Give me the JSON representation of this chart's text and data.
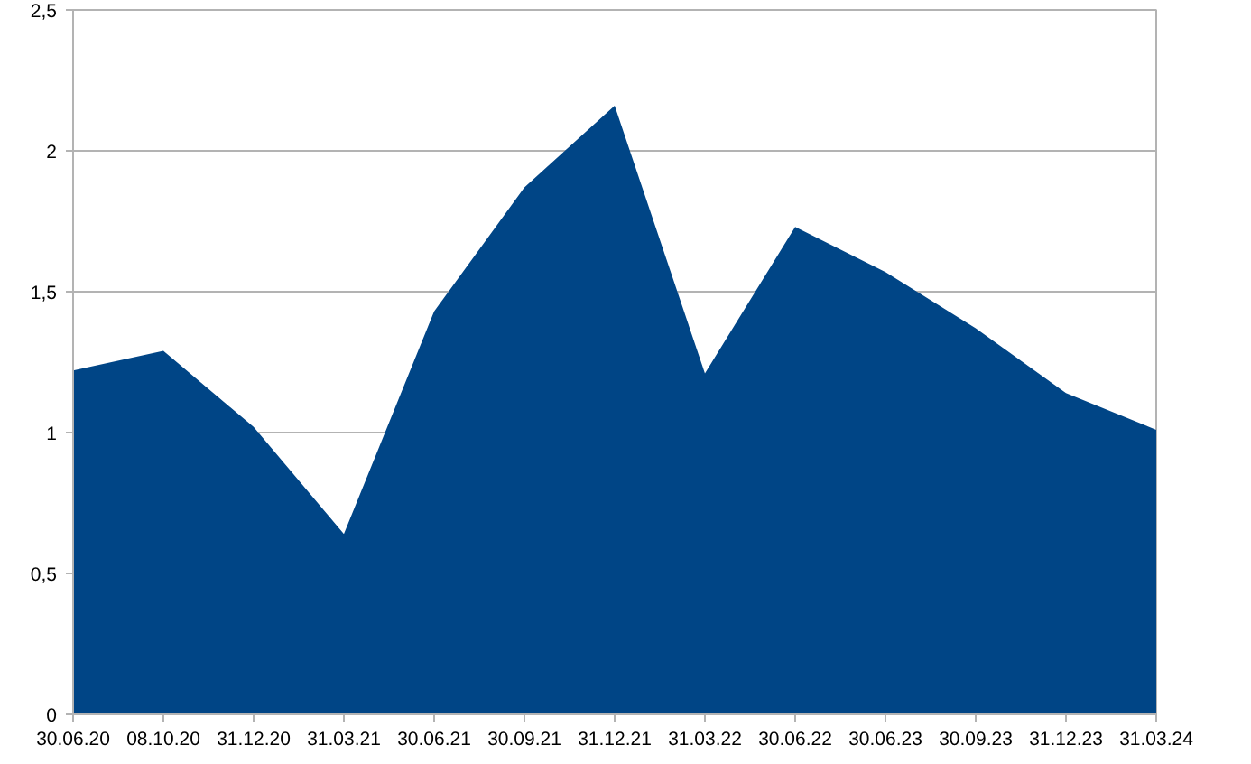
{
  "chart_data": {
    "type": "area",
    "categories": [
      "30.06.20",
      "08.10.20",
      "31.12.20",
      "31.03.21",
      "30.06.21",
      "30.09.21",
      "31.12.21",
      "31.03.22",
      "30.06.22",
      "30.06.23",
      "30.09.23",
      "31.12.23",
      "31.03.24"
    ],
    "series": [
      {
        "color": "#004586",
        "values": [
          1.22,
          1.29,
          1.02,
          0.64,
          1.43,
          1.87,
          2.16,
          1.21,
          1.73,
          1.57,
          1.37,
          1.14,
          1.01
        ]
      }
    ],
    "ylim": [
      0,
      2.5
    ],
    "yticks": [
      0,
      {
        "value": 0.5,
        "label": "0,5"
      },
      1,
      {
        "value": 1.5,
        "label": "1,5"
      },
      2,
      {
        "value": 2.5,
        "label": "2,5"
      }
    ],
    "grid": "y"
  }
}
